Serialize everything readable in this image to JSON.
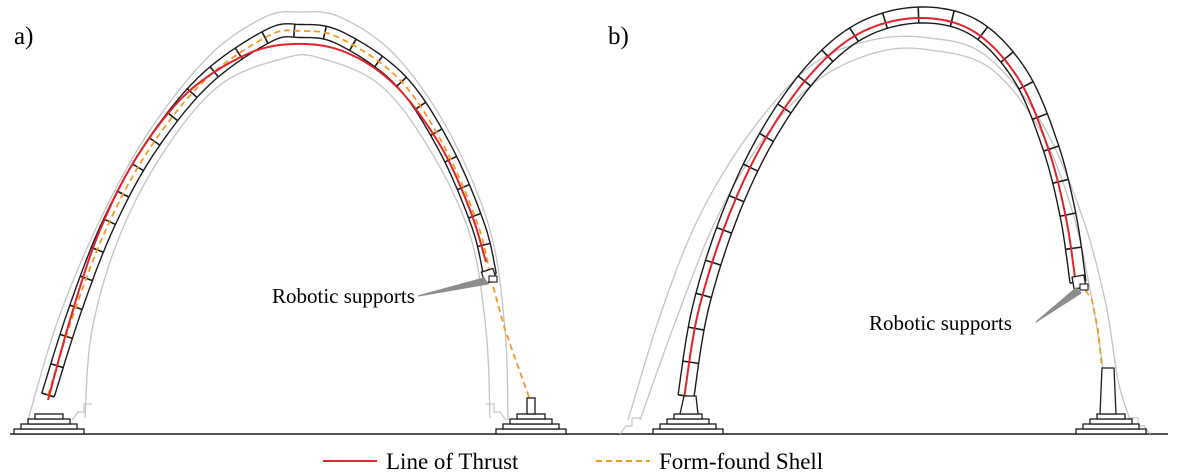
{
  "panels": [
    {
      "label": "a)",
      "annotation": "Robotic supports"
    },
    {
      "label": "b)",
      "annotation": "Robotic supports"
    }
  ],
  "legend": {
    "thrust_label": "Line of Thrust",
    "shell_label": "Form-found Shell"
  },
  "colors": {
    "thrust": "#e0232c",
    "shell": "#f29b1f",
    "outline": "#1a1a1a",
    "ghost": "#c4c4c4",
    "pointer": "#8c8c8c"
  }
}
